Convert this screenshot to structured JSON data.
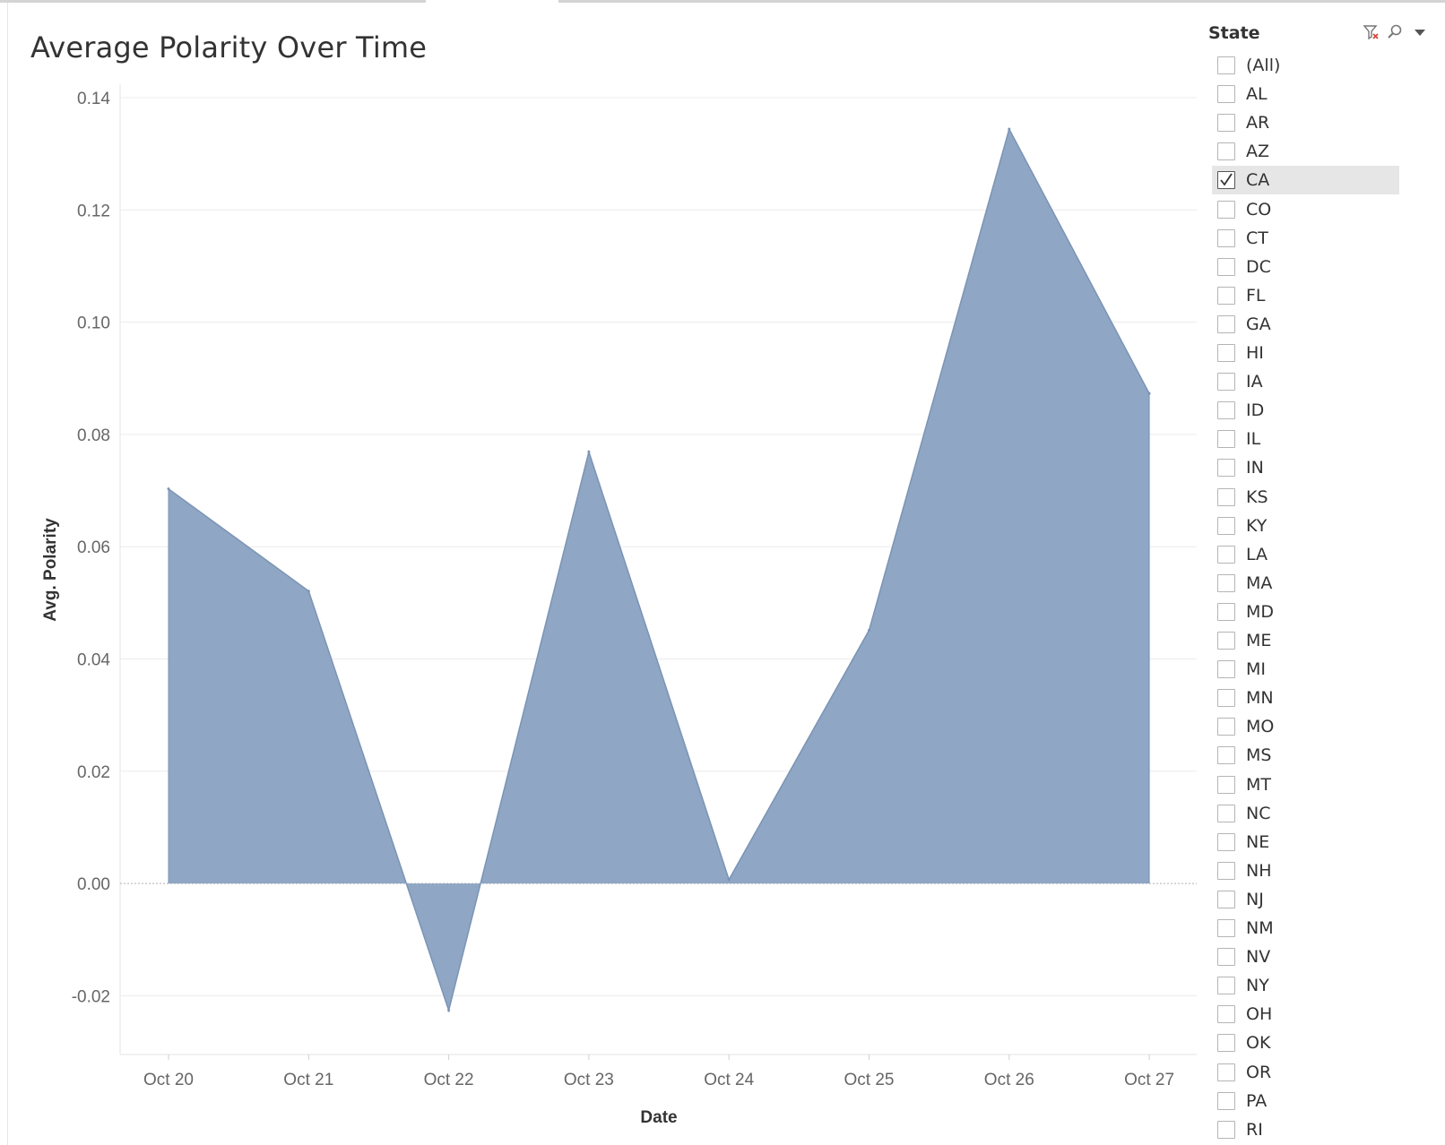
{
  "chart_data": {
    "type": "area",
    "title": "Average Polarity Over Time",
    "xlabel": "Date",
    "ylabel": "Avg. Polarity",
    "categories": [
      "Oct 20",
      "Oct 21",
      "Oct 22",
      "Oct 23",
      "Oct 24",
      "Oct 25",
      "Oct 26",
      "Oct 27"
    ],
    "values": [
      0.0703,
      0.0521,
      -0.0226,
      0.0769,
      0.0007,
      0.0451,
      0.1344,
      0.0873
    ],
    "yticks": [
      0.14,
      0.12,
      0.1,
      0.08,
      0.06,
      0.04,
      0.02,
      0.0,
      -0.02
    ],
    "ytick_labels": [
      "0.14",
      "0.12",
      "0.10",
      "0.08",
      "0.06",
      "0.04",
      "0.02",
      "0.00",
      "-0.02"
    ],
    "ylim": [
      -0.031,
      0.142
    ],
    "grid": true,
    "fill_color": "#8fa6c4",
    "line_color": "#7b94b5"
  },
  "filter": {
    "title": "State",
    "icons": [
      "clear-filter-icon",
      "search-icon",
      "dropdown-menu-icon"
    ],
    "items": [
      {
        "label": "(All)",
        "checked": false
      },
      {
        "label": "AL",
        "checked": false
      },
      {
        "label": "AR",
        "checked": false
      },
      {
        "label": "AZ",
        "checked": false
      },
      {
        "label": "CA",
        "checked": true
      },
      {
        "label": "CO",
        "checked": false
      },
      {
        "label": "CT",
        "checked": false
      },
      {
        "label": "DC",
        "checked": false
      },
      {
        "label": "FL",
        "checked": false
      },
      {
        "label": "GA",
        "checked": false
      },
      {
        "label": "HI",
        "checked": false
      },
      {
        "label": "IA",
        "checked": false
      },
      {
        "label": "ID",
        "checked": false
      },
      {
        "label": "IL",
        "checked": false
      },
      {
        "label": "IN",
        "checked": false
      },
      {
        "label": "KS",
        "checked": false
      },
      {
        "label": "KY",
        "checked": false
      },
      {
        "label": "LA",
        "checked": false
      },
      {
        "label": "MA",
        "checked": false
      },
      {
        "label": "MD",
        "checked": false
      },
      {
        "label": "ME",
        "checked": false
      },
      {
        "label": "MI",
        "checked": false
      },
      {
        "label": "MN",
        "checked": false
      },
      {
        "label": "MO",
        "checked": false
      },
      {
        "label": "MS",
        "checked": false
      },
      {
        "label": "MT",
        "checked": false
      },
      {
        "label": "NC",
        "checked": false
      },
      {
        "label": "NE",
        "checked": false
      },
      {
        "label": "NH",
        "checked": false
      },
      {
        "label": "NJ",
        "checked": false
      },
      {
        "label": "NM",
        "checked": false
      },
      {
        "label": "NV",
        "checked": false
      },
      {
        "label": "NY",
        "checked": false
      },
      {
        "label": "OH",
        "checked": false
      },
      {
        "label": "OK",
        "checked": false
      },
      {
        "label": "OR",
        "checked": false
      },
      {
        "label": "PA",
        "checked": false
      },
      {
        "label": "RI",
        "checked": false
      }
    ]
  }
}
